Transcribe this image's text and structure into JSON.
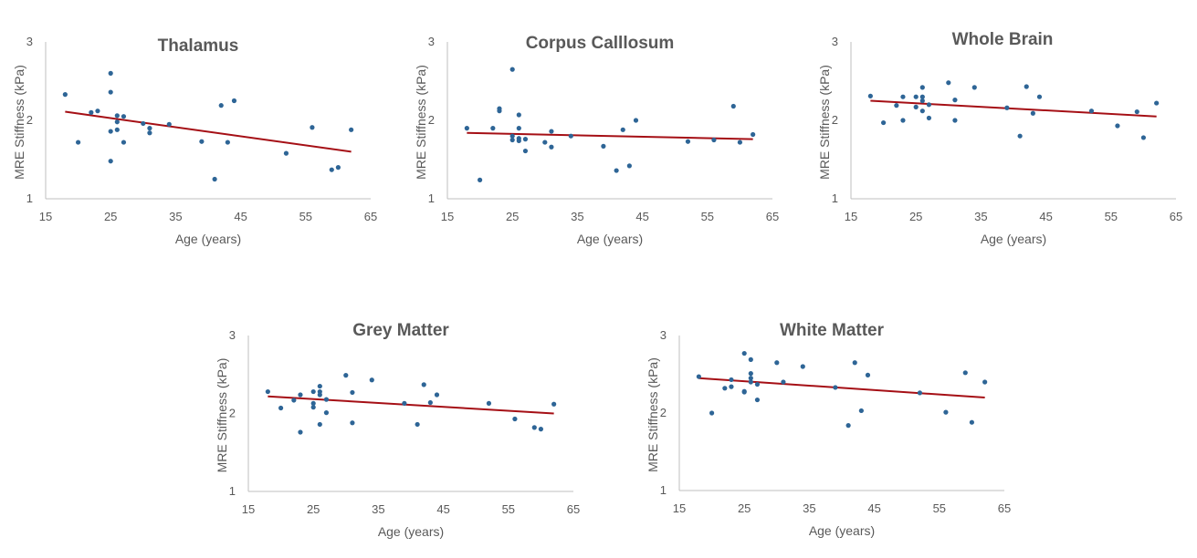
{
  "figure": {
    "xlabel": "Age (years)",
    "ylabel": "MRE Stiffness (kPa)"
  },
  "colors": {
    "point": "#2e6596",
    "trend": "#a50f15",
    "axis": "#bfbfbf",
    "text": "#595959",
    "title": "#595959"
  },
  "chart_data": [
    {
      "type": "scatter",
      "title": "Thalamus",
      "xlabel": "Age (years)",
      "ylabel": "MRE Stiffness (kPa)",
      "xlim": [
        15,
        65
      ],
      "ylim": [
        1,
        3
      ],
      "xticks": [
        "15",
        "25",
        "35",
        "45",
        "55",
        "65"
      ],
      "yticks": [
        "1",
        "2",
        "3"
      ],
      "trendline": {
        "x": [
          18,
          62
        ],
        "y": [
          2.11,
          1.6
        ]
      },
      "points": [
        [
          18,
          2.33
        ],
        [
          20,
          1.72
        ],
        [
          22,
          2.1
        ],
        [
          23,
          2.12
        ],
        [
          25,
          2.6
        ],
        [
          25,
          2.36
        ],
        [
          25,
          1.86
        ],
        [
          25,
          1.48
        ],
        [
          26,
          2.06
        ],
        [
          26,
          1.98
        ],
        [
          26,
          1.88
        ],
        [
          27,
          2.05
        ],
        [
          27,
          1.72
        ],
        [
          30,
          1.96
        ],
        [
          31,
          1.9
        ],
        [
          31,
          1.84
        ],
        [
          34,
          1.95
        ],
        [
          39,
          1.73
        ],
        [
          41,
          1.25
        ],
        [
          42,
          2.19
        ],
        [
          43,
          1.72
        ],
        [
          44,
          2.25
        ],
        [
          52,
          1.58
        ],
        [
          56,
          1.91
        ],
        [
          59,
          1.37
        ],
        [
          60,
          1.4
        ],
        [
          62,
          1.88
        ]
      ]
    },
    {
      "type": "scatter",
      "title": "Corpus Calllosum",
      "xlabel": "Age (years)",
      "ylabel": "MRE Stiffness (kPa)",
      "xlim": [
        15,
        65
      ],
      "ylim": [
        1,
        3
      ],
      "xticks": [
        "15",
        "25",
        "35",
        "45",
        "55",
        "65"
      ],
      "yticks": [
        "1",
        "2",
        "3"
      ],
      "trendline": {
        "x": [
          18,
          62
        ],
        "y": [
          1.84,
          1.76
        ]
      },
      "points": [
        [
          18,
          1.9
        ],
        [
          20,
          1.24
        ],
        [
          22,
          1.9
        ],
        [
          23,
          2.15
        ],
        [
          23,
          2.12
        ],
        [
          25,
          2.65
        ],
        [
          25,
          1.8
        ],
        [
          25,
          1.75
        ],
        [
          26,
          2.07
        ],
        [
          26,
          1.9
        ],
        [
          26,
          1.77
        ],
        [
          26,
          1.74
        ],
        [
          27,
          1.76
        ],
        [
          27,
          1.61
        ],
        [
          30,
          1.72
        ],
        [
          31,
          1.86
        ],
        [
          31,
          1.66
        ],
        [
          34,
          1.8
        ],
        [
          39,
          1.67
        ],
        [
          41,
          1.36
        ],
        [
          42,
          1.88
        ],
        [
          43,
          1.42
        ],
        [
          44,
          2.0
        ],
        [
          52,
          1.73
        ],
        [
          56,
          1.75
        ],
        [
          59,
          2.18
        ],
        [
          60,
          1.72
        ],
        [
          62,
          1.82
        ]
      ]
    },
    {
      "type": "scatter",
      "title": "Whole Brain",
      "xlabel": "Age (years)",
      "ylabel": "MRE Stiffness (kPa)",
      "xlim": [
        15,
        65
      ],
      "ylim": [
        1,
        3
      ],
      "xticks": [
        "15",
        "25",
        "35",
        "45",
        "55",
        "65"
      ],
      "yticks": [
        "1",
        "2",
        "3"
      ],
      "trendline": {
        "x": [
          18,
          62
        ],
        "y": [
          2.25,
          2.05
        ]
      },
      "points": [
        [
          18,
          2.31
        ],
        [
          20,
          1.97
        ],
        [
          22,
          2.19
        ],
        [
          23,
          2.3
        ],
        [
          23,
          2.0
        ],
        [
          25,
          2.3
        ],
        [
          25,
          2.17
        ],
        [
          26,
          2.42
        ],
        [
          26,
          2.3
        ],
        [
          26,
          2.25
        ],
        [
          26,
          2.12
        ],
        [
          27,
          2.2
        ],
        [
          27,
          2.03
        ],
        [
          30,
          2.48
        ],
        [
          31,
          2.26
        ],
        [
          31,
          2.0
        ],
        [
          34,
          2.42
        ],
        [
          39,
          2.16
        ],
        [
          41,
          1.8
        ],
        [
          42,
          2.43
        ],
        [
          43,
          2.09
        ],
        [
          44,
          2.3
        ],
        [
          52,
          2.12
        ],
        [
          56,
          1.93
        ],
        [
          59,
          2.11
        ],
        [
          60,
          1.78
        ],
        [
          62,
          2.22
        ]
      ]
    },
    {
      "type": "scatter",
      "title": "Grey Matter",
      "xlabel": "Age (years)",
      "ylabel": "MRE Stiffness (kPa)",
      "xlim": [
        15,
        65
      ],
      "ylim": [
        1,
        3
      ],
      "xticks": [
        "15",
        "25",
        "35",
        "45",
        "55",
        "65"
      ],
      "yticks": [
        "1",
        "2",
        "3"
      ],
      "trendline": {
        "x": [
          18,
          62
        ],
        "y": [
          2.22,
          2.0
        ]
      },
      "points": [
        [
          18,
          2.28
        ],
        [
          20,
          2.07
        ],
        [
          22,
          2.17
        ],
        [
          23,
          2.24
        ],
        [
          23,
          1.76
        ],
        [
          25,
          2.28
        ],
        [
          25,
          2.13
        ],
        [
          25,
          2.08
        ],
        [
          26,
          2.35
        ],
        [
          26,
          2.28
        ],
        [
          26,
          2.24
        ],
        [
          26,
          1.86
        ],
        [
          27,
          2.18
        ],
        [
          27,
          2.01
        ],
        [
          30,
          2.49
        ],
        [
          31,
          2.27
        ],
        [
          31,
          1.88
        ],
        [
          34,
          2.43
        ],
        [
          39,
          2.13
        ],
        [
          41,
          1.86
        ],
        [
          42,
          2.37
        ],
        [
          43,
          2.14
        ],
        [
          44,
          2.24
        ],
        [
          52,
          2.13
        ],
        [
          56,
          1.93
        ],
        [
          59,
          1.82
        ],
        [
          60,
          1.8
        ],
        [
          62,
          2.12
        ]
      ]
    },
    {
      "type": "scatter",
      "title": "White Matter",
      "xlabel": "Age (years)",
      "ylabel": "MRE Stiffness (kPa)",
      "xlim": [
        15,
        65
      ],
      "ylim": [
        1,
        3
      ],
      "xticks": [
        "15",
        "25",
        "35",
        "45",
        "55",
        "65"
      ],
      "yticks": [
        "1",
        "2",
        "3"
      ],
      "trendline": {
        "x": [
          18,
          62
        ],
        "y": [
          2.45,
          2.2
        ]
      },
      "points": [
        [
          18,
          2.47
        ],
        [
          20,
          2.0
        ],
        [
          22,
          2.32
        ],
        [
          23,
          2.43
        ],
        [
          23,
          2.34
        ],
        [
          25,
          2.77
        ],
        [
          25,
          2.28
        ],
        [
          25,
          2.27
        ],
        [
          26,
          2.69
        ],
        [
          26,
          2.51
        ],
        [
          26,
          2.45
        ],
        [
          26,
          2.4
        ],
        [
          27,
          2.37
        ],
        [
          27,
          2.17
        ],
        [
          30,
          2.65
        ],
        [
          31,
          2.4
        ],
        [
          34,
          2.6
        ],
        [
          39,
          2.33
        ],
        [
          41,
          1.84
        ],
        [
          42,
          2.65
        ],
        [
          43,
          2.03
        ],
        [
          44,
          2.49
        ],
        [
          52,
          2.26
        ],
        [
          56,
          2.01
        ],
        [
          59,
          2.52
        ],
        [
          60,
          1.88
        ],
        [
          62,
          2.4
        ]
      ]
    }
  ]
}
